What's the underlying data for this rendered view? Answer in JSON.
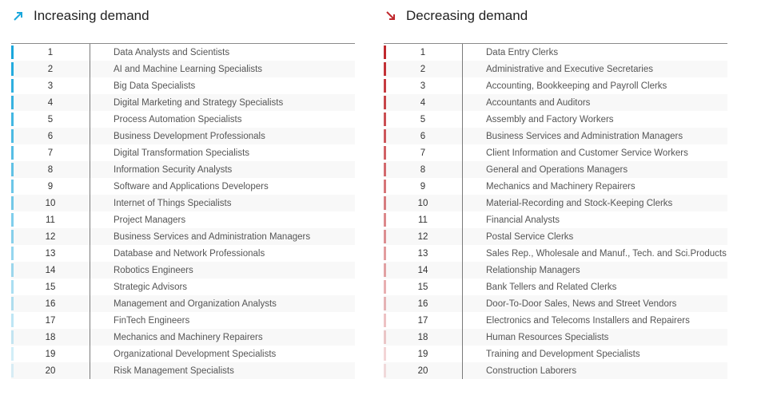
{
  "increasing": {
    "title": "Increasing demand",
    "accent": "#1aa7dc",
    "items": [
      "Data Analysts and Scientists",
      "AI and Machine Learning Specialists",
      "Big Data Specialists",
      "Digital Marketing and Strategy Specialists",
      "Process Automation Specialists",
      "Business Development Professionals",
      "Digital Transformation Specialists",
      "Information Security Analysts",
      "Software and Applications Developers",
      "Internet of Things Specialists",
      "Project Managers",
      "Business Services and Administration Managers",
      "Database and Network Professionals",
      "Robotics Engineers",
      "Strategic Advisors",
      "Management and Organization Analysts",
      "FinTech Engineers",
      "Mechanics and Machinery Repairers",
      "Organizational Development Specialists",
      "Risk Management Specialists"
    ]
  },
  "decreasing": {
    "title": "Decreasing demand",
    "accent": "#c0282d",
    "items": [
      "Data Entry Clerks",
      "Administrative and Executive Secretaries",
      "Accounting,  Bookkeeping and Payroll Clerks",
      "Accountants and Auditors",
      "Assembly and Factory Workers",
      "Business Services and Administration Managers",
      "Client Information and Customer Service Workers",
      "General and Operations Managers",
      "Mechanics and Machinery Repairers",
      "Material-Recording and Stock-Keeping Clerks",
      "Financial Analysts",
      "Postal Service Clerks",
      "Sales Rep., Wholesale and Manuf., Tech. and Sci.Products",
      "Relationship Managers",
      "Bank Tellers and Related Clerks",
      "Door-To-Door Sales, News and Street Vendors",
      "Electronics and Telecoms Installers and Repairers",
      "Human Resources Specialists",
      "Training and Development Specialists",
      "Construction Laborers"
    ]
  },
  "ranks": [
    "1",
    "2",
    "3",
    "4",
    "5",
    "6",
    "7",
    "8",
    "9",
    "10",
    "11",
    "12",
    "13",
    "14",
    "15",
    "16",
    "17",
    "18",
    "19",
    "20"
  ],
  "icons": {
    "increasing": "arrow-up-right-icon",
    "decreasing": "arrow-down-right-icon"
  }
}
